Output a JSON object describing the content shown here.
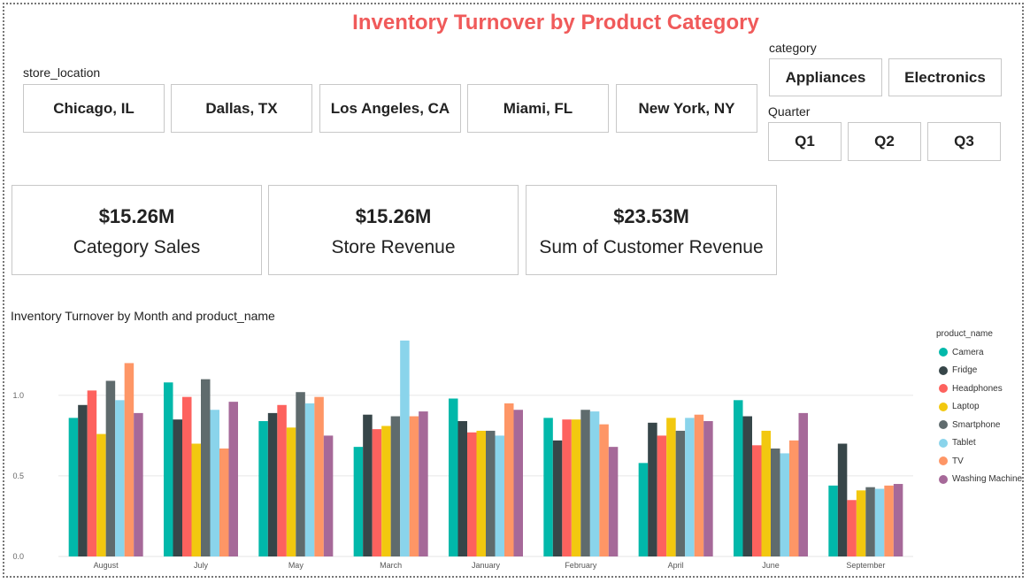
{
  "title": "Inventory Turnover by Product Category",
  "store_location": {
    "label": "store_location",
    "options": [
      "Chicago, IL",
      "Dallas, TX",
      "Los Angeles, CA",
      "Miami, FL",
      "New York, NY"
    ]
  },
  "category": {
    "label": "category",
    "options": [
      "Appliances",
      "Electronics"
    ]
  },
  "quarter": {
    "label": "Quarter",
    "options": [
      "Q1",
      "Q2",
      "Q3"
    ]
  },
  "cards": [
    {
      "value": "$15.26M",
      "label": "Category Sales"
    },
    {
      "value": "$15.26M",
      "label": "Store Revenue"
    },
    {
      "value": "$23.53M",
      "label": "Sum of Customer Revenue"
    }
  ],
  "colors": {
    "title": "#f05a5a",
    "series": [
      "#01b8aa",
      "#374649",
      "#fd625e",
      "#f2c80f",
      "#5f6b6d",
      "#8ad4eb",
      "#fe9666",
      "#a66999"
    ]
  },
  "chart_data": {
    "type": "bar",
    "title": "Inventory Turnover by Month and product_name",
    "legend_title": "product_name",
    "legend_position": "right",
    "grid": true,
    "ylim": [
      0,
      1.4
    ],
    "yticks": [
      "0.0",
      "0.5",
      "1.0"
    ],
    "categories": [
      "August",
      "July",
      "May",
      "March",
      "January",
      "February",
      "April",
      "June",
      "September"
    ],
    "series": [
      {
        "name": "Camera",
        "values": [
          0.86,
          1.08,
          0.84,
          0.68,
          0.98,
          0.86,
          0.58,
          0.97,
          0.44
        ]
      },
      {
        "name": "Fridge",
        "values": [
          0.94,
          0.85,
          0.89,
          0.88,
          0.84,
          0.72,
          0.83,
          0.87,
          0.7
        ]
      },
      {
        "name": "Headphones",
        "values": [
          1.03,
          0.99,
          0.94,
          0.79,
          0.77,
          0.85,
          0.75,
          0.69,
          0.35
        ]
      },
      {
        "name": "Laptop",
        "values": [
          0.76,
          0.7,
          0.8,
          0.81,
          0.78,
          0.85,
          0.86,
          0.78,
          0.41
        ]
      },
      {
        "name": "Smartphone",
        "values": [
          1.09,
          1.1,
          1.02,
          0.87,
          0.78,
          0.91,
          0.78,
          0.67,
          0.43
        ]
      },
      {
        "name": "Tablet",
        "values": [
          0.97,
          0.91,
          0.95,
          1.34,
          0.75,
          0.9,
          0.86,
          0.64,
          0.42
        ]
      },
      {
        "name": "TV",
        "values": [
          1.2,
          0.67,
          0.99,
          0.87,
          0.95,
          0.82,
          0.88,
          0.72,
          0.44
        ]
      },
      {
        "name": "Washing Machine",
        "values": [
          0.89,
          0.96,
          0.75,
          0.9,
          0.91,
          0.68,
          0.84,
          0.89,
          0.45
        ]
      }
    ]
  }
}
